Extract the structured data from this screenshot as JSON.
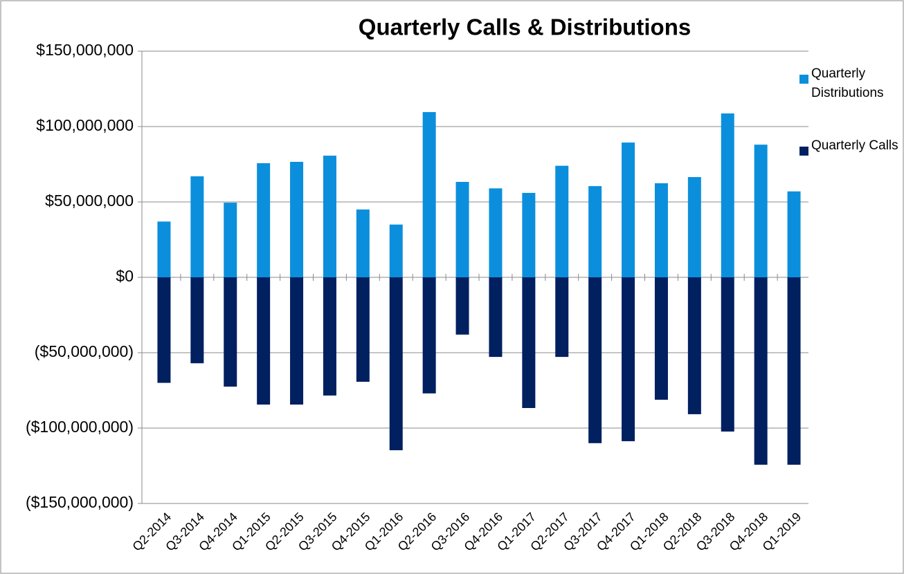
{
  "chart_data": {
    "type": "bar",
    "title": "Quarterly Calls & Distributions",
    "categories": [
      "Q2-2014",
      "Q3-2014",
      "Q4-2014",
      "Q1-2015",
      "Q2-2015",
      "Q3-2015",
      "Q4-2015",
      "Q1-2016",
      "Q2-2016",
      "Q3-2016",
      "Q4-2016",
      "Q1-2017",
      "Q2-2017",
      "Q3-2017",
      "Q4-2017",
      "Q1-2018",
      "Q2-2018",
      "Q3-2018",
      "Q4-2018",
      "Q1-2019"
    ],
    "series": [
      {
        "name": "Quarterly Distributions",
        "color": "#0b8fdc",
        "values": [
          37000000,
          67000000,
          49500000,
          75700000,
          76600000,
          80700000,
          45000000,
          35000000,
          109600000,
          63300000,
          59000000,
          56000000,
          74000000,
          60500000,
          89400000,
          62400000,
          66500000,
          108700000,
          88000000,
          57000000
        ]
      },
      {
        "name": "Quarterly Calls",
        "color": "#002060",
        "values": [
          -70000000,
          -57000000,
          -72500000,
          -84400000,
          -84400000,
          -78400000,
          -69300000,
          -114700000,
          -77000000,
          -38000000,
          -52800000,
          -86700000,
          -52800000,
          -110000000,
          -108700000,
          -81200000,
          -90800000,
          -102300000,
          -124300000,
          -124300000
        ]
      }
    ],
    "ylim": [
      -150000000,
      150000000
    ],
    "yticks": [
      {
        "value": -150000000,
        "label": "($150,000,000)"
      },
      {
        "value": -100000000,
        "label": "($100,000,000)"
      },
      {
        "value": -50000000,
        "label": "($50,000,000)"
      },
      {
        "value": 0,
        "label": "$0"
      },
      {
        "value": 50000000,
        "label": "$50,000,000"
      },
      {
        "value": 100000000,
        "label": "$100,000,000"
      },
      {
        "value": 150000000,
        "label": "$150,000,000"
      }
    ],
    "grid": true,
    "legend": "right"
  }
}
